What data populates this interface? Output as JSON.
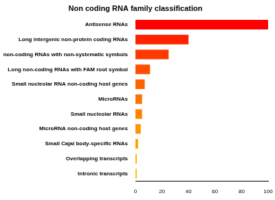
{
  "chart_data": {
    "type": "bar",
    "orientation": "horizontal",
    "title": "Non coding RNA family classification",
    "categories": [
      "Antisense RNAs",
      "Long intergenic non-protein coding RNAs",
      "Long non-coding RNAs with non-systematic symbols",
      "Long non-coding RNAs with FAM root symbol",
      "Small nucleolar RNA non-coding host genes",
      "MicroRNAs",
      "Small nucleolar RNAs",
      "MicroRNA non-coding host genes",
      "Small Cajal body-specific RNAs",
      "Overlapping transcripts",
      "Intronic transcripts"
    ],
    "values": [
      100,
      40,
      25,
      11,
      7,
      5,
      5,
      4,
      2,
      1,
      1
    ],
    "colors": [
      "#ff0000",
      "#ff2200",
      "#ff3a00",
      "#ff5000",
      "#ff6300",
      "#ff7400",
      "#ff8400",
      "#ff9300",
      "#ffa200",
      "#ffb000",
      "#ffbe00"
    ],
    "xlim": [
      0,
      100
    ],
    "xticks": [
      0,
      20,
      40,
      60,
      80,
      100
    ],
    "grid": false
  }
}
